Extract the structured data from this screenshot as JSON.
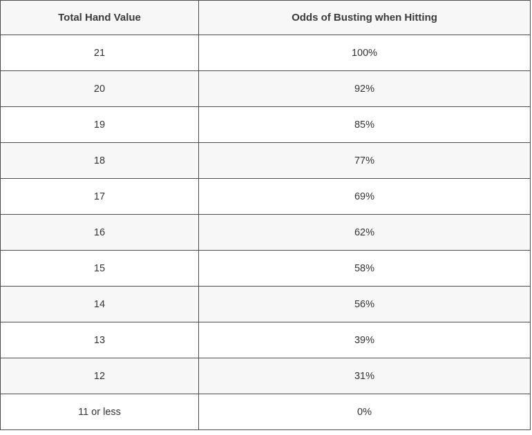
{
  "table": {
    "headers": [
      "Total Hand Value",
      "Odds of Busting when Hitting"
    ],
    "rows": [
      {
        "hand": "21",
        "odds": "100%"
      },
      {
        "hand": "20",
        "odds": "92%"
      },
      {
        "hand": "19",
        "odds": "85%"
      },
      {
        "hand": "18",
        "odds": "77%"
      },
      {
        "hand": "17",
        "odds": "69%"
      },
      {
        "hand": "16",
        "odds": "62%"
      },
      {
        "hand": "15",
        "odds": "58%"
      },
      {
        "hand": "14",
        "odds": "56%"
      },
      {
        "hand": "13",
        "odds": "39%"
      },
      {
        "hand": "12",
        "odds": "31%"
      },
      {
        "hand": "11 or less",
        "odds": "0%"
      }
    ]
  }
}
